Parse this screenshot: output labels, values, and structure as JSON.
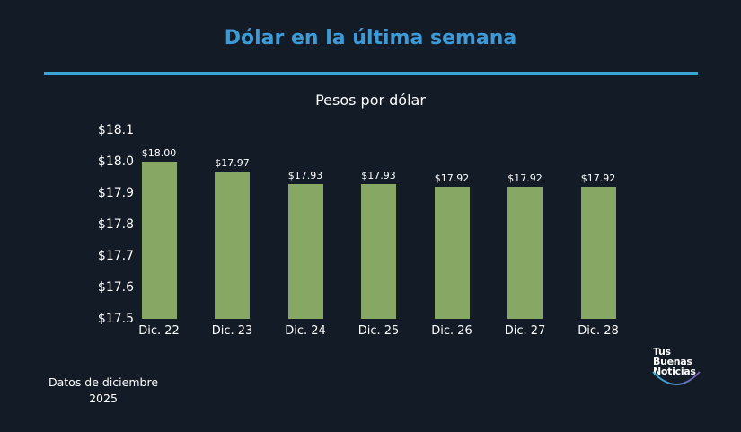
{
  "header": {
    "title": "Dólar en la última semana",
    "subtitle": "Pesos por dólar"
  },
  "footer": {
    "note_line1": "Datos de diciembre",
    "note_line2": "2025",
    "logo_line1": "Tus",
    "logo_line2": "Buenas",
    "logo_line3": "Noticias"
  },
  "colors": {
    "background": "#131b27",
    "title": "#3d9ad6",
    "rule": "#3aa5d5",
    "bar": "#87a764"
  },
  "chart_data": {
    "type": "bar",
    "title": "Dólar en la última semana",
    "subtitle": "Pesos por dólar",
    "xlabel": "",
    "ylabel": "Pesos por dólar",
    "categories": [
      "Dic. 22",
      "Dic. 23",
      "Dic. 24",
      "Dic. 25",
      "Dic. 26",
      "Dic. 27",
      "Dic. 28"
    ],
    "values": [
      18.0,
      17.97,
      17.93,
      17.93,
      17.92,
      17.92,
      17.92
    ],
    "value_labels": [
      "$18.00",
      "$17.97",
      "$17.93",
      "$17.93",
      "$17.92",
      "$17.92",
      "$17.92"
    ],
    "y_ticks": [
      "$17.5",
      "$17.6",
      "$17.7",
      "$17.8",
      "$17.9",
      "$18.0",
      "$18.1"
    ],
    "ylim": [
      17.5,
      18.1
    ],
    "grid": false,
    "legend": "none"
  }
}
